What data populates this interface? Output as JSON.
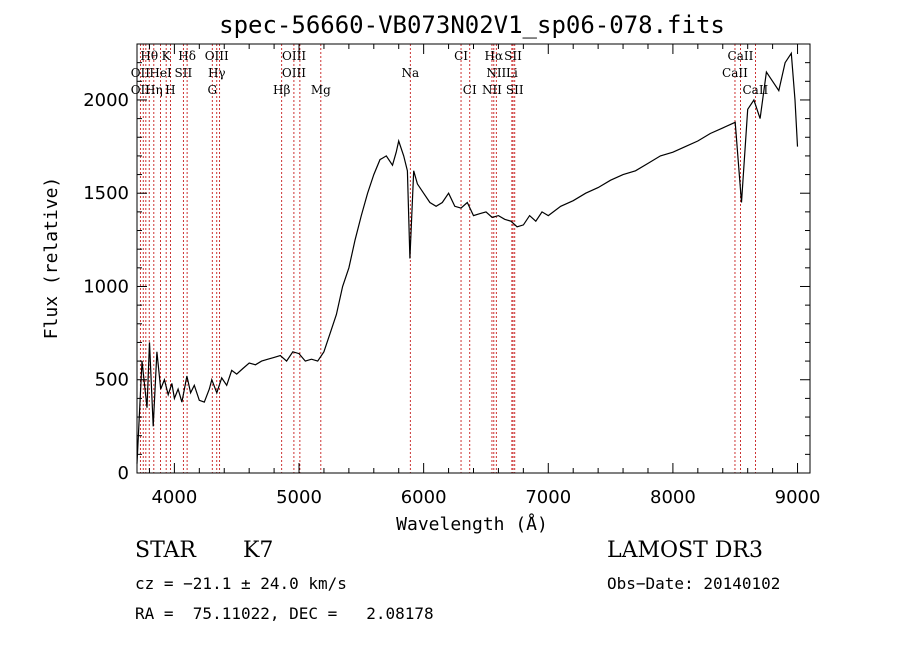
{
  "chart_data": {
    "type": "line",
    "title": "spec-56660-VB073N02V1_sp06-078.fits",
    "xlabel": "Wavelength (Å)",
    "ylabel": "Flux (relative)",
    "xlim": [
      3700,
      9100
    ],
    "ylim": [
      0,
      2300
    ],
    "xticks": [
      4000,
      5000,
      6000,
      7000,
      8000,
      9000
    ],
    "yticks": [
      0,
      500,
      1000,
      1500,
      2000
    ],
    "series": [
      {
        "name": "spectrum",
        "x": [
          3700,
          3740,
          3780,
          3800,
          3830,
          3860,
          3890,
          3920,
          3950,
          3980,
          4000,
          4030,
          4060,
          4100,
          4130,
          4160,
          4200,
          4240,
          4280,
          4300,
          4340,
          4380,
          4420,
          4460,
          4500,
          4550,
          4600,
          4650,
          4700,
          4750,
          4800,
          4850,
          4900,
          4950,
          5000,
          5050,
          5100,
          5150,
          5200,
          5250,
          5300,
          5350,
          5400,
          5450,
          5500,
          5550,
          5600,
          5650,
          5700,
          5750,
          5780,
          5800,
          5840,
          5870,
          5890,
          5920,
          5950,
          6000,
          6050,
          6100,
          6150,
          6200,
          6250,
          6300,
          6350,
          6400,
          6450,
          6500,
          6550,
          6600,
          6650,
          6700,
          6750,
          6800,
          6850,
          6900,
          6950,
          7000,
          7100,
          7200,
          7300,
          7400,
          7500,
          7600,
          7700,
          7800,
          7900,
          8000,
          8100,
          8200,
          8300,
          8400,
          8500,
          8550,
          8600,
          8650,
          8700,
          8750,
          8800,
          8850,
          8900,
          8950,
          8980,
          9000
        ],
        "y": [
          50,
          600,
          350,
          700,
          250,
          650,
          450,
          500,
          420,
          480,
          400,
          450,
          380,
          520,
          430,
          470,
          390,
          380,
          450,
          500,
          430,
          510,
          470,
          550,
          530,
          560,
          590,
          580,
          600,
          610,
          620,
          630,
          600,
          650,
          640,
          600,
          610,
          600,
          650,
          750,
          850,
          1000,
          1100,
          1250,
          1380,
          1500,
          1600,
          1680,
          1700,
          1650,
          1720,
          1780,
          1700,
          1620,
          1150,
          1620,
          1550,
          1500,
          1450,
          1430,
          1450,
          1500,
          1430,
          1420,
          1450,
          1380,
          1390,
          1400,
          1370,
          1380,
          1360,
          1350,
          1320,
          1330,
          1380,
          1350,
          1400,
          1380,
          1430,
          1460,
          1500,
          1530,
          1570,
          1600,
          1620,
          1660,
          1700,
          1720,
          1750,
          1780,
          1820,
          1850,
          1880,
          1450,
          1950,
          2000,
          1900,
          2150,
          2100,
          2050,
          2200,
          2250,
          2000,
          1750
        ]
      }
    ],
    "annotations": [
      {
        "label": "Hθ",
        "x": 3798,
        "row": 1
      },
      {
        "label": "K",
        "x": 3934,
        "row": 1
      },
      {
        "label": "Hδ",
        "x": 4102,
        "row": 1
      },
      {
        "label": "OIII",
        "x": 4340,
        "row": 1
      },
      {
        "label": "OIII",
        "x": 4960,
        "row": 1
      },
      {
        "label": "CI",
        "x": 6300,
        "row": 1
      },
      {
        "label": "Hα",
        "x": 6563,
        "row": 1
      },
      {
        "label": "SII",
        "x": 6717,
        "row": 1
      },
      {
        "label": "CaII",
        "x": 8542,
        "row": 1
      },
      {
        "label": "OII",
        "x": 3727,
        "row": 2
      },
      {
        "label": "HeI",
        "x": 3889,
        "row": 2
      },
      {
        "label": "SII",
        "x": 4072,
        "row": 2
      },
      {
        "label": "Hγ",
        "x": 4340,
        "row": 2
      },
      {
        "label": "OIII",
        "x": 4959,
        "row": 2
      },
      {
        "label": "Na",
        "x": 5893,
        "row": 2
      },
      {
        "label": "NII",
        "x": 6583,
        "row": 2
      },
      {
        "label": "Li",
        "x": 6708,
        "row": 2
      },
      {
        "label": "CaII",
        "x": 8498,
        "row": 2
      },
      {
        "label": "OII",
        "x": 3727,
        "row": 3
      },
      {
        "label": "Hη",
        "x": 3835,
        "row": 3
      },
      {
        "label": "H",
        "x": 3968,
        "row": 3
      },
      {
        "label": "G",
        "x": 4304,
        "row": 3
      },
      {
        "label": "Hβ",
        "x": 4861,
        "row": 3
      },
      {
        "label": "Mg",
        "x": 5175,
        "row": 3
      },
      {
        "label": "CI",
        "x": 6370,
        "row": 3
      },
      {
        "label": "NII",
        "x": 6548,
        "row": 3
      },
      {
        "label": "SII",
        "x": 6731,
        "row": 3
      },
      {
        "label": "CaII",
        "x": 8662,
        "row": 3
      }
    ],
    "line_markers": [
      3727,
      3750,
      3771,
      3798,
      3835,
      3889,
      3934,
      3968,
      4072,
      4102,
      4304,
      4340,
      4363,
      4861,
      4959,
      5007,
      5175,
      5893,
      6300,
      6370,
      6548,
      6563,
      6583,
      6708,
      6717,
      6731,
      8498,
      8542,
      8662
    ]
  },
  "info": {
    "object_type": "STAR",
    "subclass": "K7",
    "survey": "LAMOST DR3",
    "cz": "cz = −21.1 ± 24.0 km/s",
    "obs_date": "Obs−Date: 20140102",
    "coords": "RA =  75.11022, DEC =   2.08178"
  }
}
